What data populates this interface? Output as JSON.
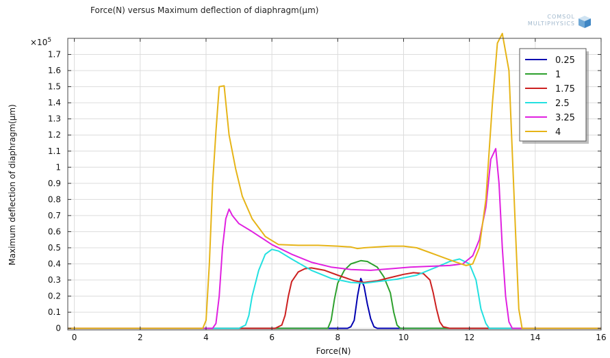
{
  "chart_data": {
    "type": "line",
    "title": "Force(N) versus Maximum deflection of diaphragm(µm)",
    "xlabel": "Force(N)",
    "ylabel": "Maximum deflection of diaphragm(µm)",
    "y_multiplier": "×10",
    "y_multiplier_exp": "5",
    "xlim": [
      -0.2,
      16
    ],
    "ylim": [
      -0.01,
      1.8
    ],
    "x_ticks": [
      0,
      2,
      4,
      6,
      8,
      10,
      12,
      14,
      16
    ],
    "y_ticks": [
      0,
      0.1,
      0.2,
      0.3,
      0.4,
      0.5,
      0.6,
      0.7,
      0.8,
      0.9,
      1,
      1.1,
      1.2,
      1.3,
      1.4,
      1.5,
      1.6,
      1.7
    ],
    "grid": true,
    "legend_position": "top-right",
    "series": [
      {
        "name": "0.25",
        "color": "#0000b0",
        "points": [
          [
            -0.2,
            0
          ],
          [
            8.3,
            0
          ],
          [
            8.4,
            0.01
          ],
          [
            8.5,
            0.05
          ],
          [
            8.6,
            0.2
          ],
          [
            8.7,
            0.31
          ],
          [
            8.8,
            0.26
          ],
          [
            8.9,
            0.15
          ],
          [
            9.0,
            0.06
          ],
          [
            9.1,
            0.01
          ],
          [
            9.2,
            0
          ],
          [
            16,
            0
          ]
        ]
      },
      {
        "name": "1",
        "color": "#2ca02c",
        "points": [
          [
            -0.2,
            0
          ],
          [
            7.7,
            0
          ],
          [
            7.8,
            0.05
          ],
          [
            7.9,
            0.18
          ],
          [
            8.0,
            0.28
          ],
          [
            8.2,
            0.36
          ],
          [
            8.4,
            0.4
          ],
          [
            8.7,
            0.42
          ],
          [
            8.9,
            0.415
          ],
          [
            9.2,
            0.38
          ],
          [
            9.4,
            0.32
          ],
          [
            9.6,
            0.22
          ],
          [
            9.7,
            0.1
          ],
          [
            9.8,
            0.02
          ],
          [
            9.9,
            0
          ],
          [
            16,
            0
          ]
        ]
      },
      {
        "name": "1.75",
        "color": "#cc1f1f",
        "points": [
          [
            -0.2,
            0
          ],
          [
            6.1,
            0
          ],
          [
            6.3,
            0.02
          ],
          [
            6.4,
            0.08
          ],
          [
            6.5,
            0.2
          ],
          [
            6.6,
            0.29
          ],
          [
            6.8,
            0.35
          ],
          [
            7.0,
            0.37
          ],
          [
            7.2,
            0.375
          ],
          [
            7.6,
            0.36
          ],
          [
            8.0,
            0.33
          ],
          [
            8.5,
            0.295
          ],
          [
            8.8,
            0.285
          ],
          [
            9.2,
            0.295
          ],
          [
            9.6,
            0.315
          ],
          [
            10.0,
            0.335
          ],
          [
            10.3,
            0.345
          ],
          [
            10.6,
            0.34
          ],
          [
            10.8,
            0.3
          ],
          [
            10.9,
            0.22
          ],
          [
            11.0,
            0.12
          ],
          [
            11.1,
            0.04
          ],
          [
            11.2,
            0.01
          ],
          [
            11.4,
            0
          ],
          [
            16,
            0
          ]
        ]
      },
      {
        "name": "2.5",
        "color": "#22e0e0",
        "points": [
          [
            -0.2,
            0
          ],
          [
            5.0,
            0
          ],
          [
            5.2,
            0.02
          ],
          [
            5.3,
            0.08
          ],
          [
            5.4,
            0.2
          ],
          [
            5.6,
            0.36
          ],
          [
            5.8,
            0.46
          ],
          [
            6.0,
            0.49
          ],
          [
            6.2,
            0.48
          ],
          [
            6.6,
            0.43
          ],
          [
            7.2,
            0.36
          ],
          [
            7.8,
            0.31
          ],
          [
            8.4,
            0.285
          ],
          [
            8.8,
            0.28
          ],
          [
            9.2,
            0.29
          ],
          [
            9.8,
            0.305
          ],
          [
            10.4,
            0.33
          ],
          [
            11.0,
            0.38
          ],
          [
            11.4,
            0.415
          ],
          [
            11.7,
            0.43
          ],
          [
            12.0,
            0.4
          ],
          [
            12.2,
            0.3
          ],
          [
            12.35,
            0.12
          ],
          [
            12.5,
            0.03
          ],
          [
            12.6,
            0
          ],
          [
            16,
            0
          ]
        ]
      },
      {
        "name": "3.25",
        "color": "#e020e0",
        "points": [
          [
            -0.2,
            0
          ],
          [
            4.2,
            0
          ],
          [
            4.3,
            0.03
          ],
          [
            4.4,
            0.2
          ],
          [
            4.5,
            0.5
          ],
          [
            4.6,
            0.68
          ],
          [
            4.7,
            0.74
          ],
          [
            4.8,
            0.7
          ],
          [
            5.0,
            0.65
          ],
          [
            5.4,
            0.6
          ],
          [
            6.0,
            0.52
          ],
          [
            6.6,
            0.46
          ],
          [
            7.2,
            0.41
          ],
          [
            7.8,
            0.38
          ],
          [
            8.4,
            0.365
          ],
          [
            9.0,
            0.36
          ],
          [
            9.6,
            0.37
          ],
          [
            10.2,
            0.38
          ],
          [
            10.8,
            0.385
          ],
          [
            11.4,
            0.39
          ],
          [
            11.8,
            0.4
          ],
          [
            12.1,
            0.45
          ],
          [
            12.3,
            0.55
          ],
          [
            12.5,
            0.75
          ],
          [
            12.65,
            1.05
          ],
          [
            12.8,
            1.115
          ],
          [
            12.9,
            0.9
          ],
          [
            13.0,
            0.5
          ],
          [
            13.1,
            0.2
          ],
          [
            13.2,
            0.04
          ],
          [
            13.3,
            0
          ],
          [
            16,
            0
          ]
        ]
      },
      {
        "name": "4",
        "color": "#e6b417",
        "points": [
          [
            -0.2,
            0
          ],
          [
            3.9,
            0
          ],
          [
            4.0,
            0.05
          ],
          [
            4.1,
            0.4
          ],
          [
            4.2,
            0.9
          ],
          [
            4.3,
            1.22
          ],
          [
            4.4,
            1.5
          ],
          [
            4.55,
            1.505
          ],
          [
            4.7,
            1.2
          ],
          [
            4.9,
            0.99
          ],
          [
            5.1,
            0.82
          ],
          [
            5.4,
            0.68
          ],
          [
            5.8,
            0.57
          ],
          [
            6.2,
            0.52
          ],
          [
            6.8,
            0.515
          ],
          [
            7.4,
            0.515
          ],
          [
            8.0,
            0.51
          ],
          [
            8.4,
            0.505
          ],
          [
            8.6,
            0.495
          ],
          [
            8.8,
            0.5
          ],
          [
            9.2,
            0.505
          ],
          [
            9.6,
            0.51
          ],
          [
            10.0,
            0.51
          ],
          [
            10.4,
            0.5
          ],
          [
            10.8,
            0.47
          ],
          [
            11.2,
            0.44
          ],
          [
            11.6,
            0.41
          ],
          [
            11.9,
            0.39
          ],
          [
            12.1,
            0.4
          ],
          [
            12.3,
            0.5
          ],
          [
            12.5,
            0.8
          ],
          [
            12.7,
            1.4
          ],
          [
            12.85,
            1.77
          ],
          [
            13.0,
            1.83
          ],
          [
            13.2,
            1.6
          ],
          [
            13.3,
            1.1
          ],
          [
            13.4,
            0.6
          ],
          [
            13.5,
            0.12
          ],
          [
            13.6,
            0
          ],
          [
            16,
            0
          ]
        ]
      }
    ]
  },
  "logo": {
    "line1": "COMSOL",
    "line2": "MULTIPHYSICS"
  }
}
